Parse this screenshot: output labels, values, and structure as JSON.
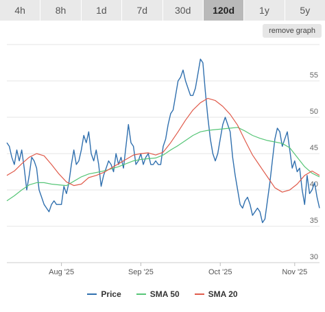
{
  "tabs": [
    {
      "label": "4h",
      "active": false
    },
    {
      "label": "8h",
      "active": false
    },
    {
      "label": "1d",
      "active": false
    },
    {
      "label": "7d",
      "active": false
    },
    {
      "label": "30d",
      "active": false
    },
    {
      "label": "120d",
      "active": true
    },
    {
      "label": "1y",
      "active": false
    },
    {
      "label": "5y",
      "active": false
    }
  ],
  "remove_label": "remove graph",
  "colors": {
    "price": "#2f6fae",
    "sma50": "#55c576",
    "sma20": "#e05a4a"
  },
  "chart_data": {
    "type": "line",
    "x_ticks": [
      "Aug '25",
      "Sep '25",
      "Oct '25",
      "Nov '25"
    ],
    "x_tick_days": [
      22,
      54,
      86,
      116
    ],
    "x_range": [
      0,
      126
    ],
    "ylim": [
      30,
      60
    ],
    "y_ticks": [
      30,
      35,
      40,
      45,
      50,
      55
    ],
    "grid": true,
    "legend": "bottom",
    "series": [
      {
        "name": "Price",
        "color_key": "price",
        "values": [
          [
            0,
            46.5
          ],
          [
            1,
            46
          ],
          [
            2,
            44.5
          ],
          [
            3,
            43.5
          ],
          [
            4,
            45.5
          ],
          [
            5,
            44
          ],
          [
            6,
            45.5
          ],
          [
            7,
            43
          ],
          [
            8,
            40
          ],
          [
            9,
            42
          ],
          [
            10,
            44.5
          ],
          [
            11,
            44
          ],
          [
            12,
            43
          ],
          [
            13,
            40
          ],
          [
            14,
            39
          ],
          [
            15,
            38
          ],
          [
            16,
            37.5
          ],
          [
            17,
            37
          ],
          [
            18,
            38
          ],
          [
            19,
            38.5
          ],
          [
            20,
            38
          ],
          [
            21,
            38
          ],
          [
            22,
            38
          ],
          [
            23,
            40.5
          ],
          [
            24,
            39.5
          ],
          [
            25,
            41
          ],
          [
            26,
            43.5
          ],
          [
            27,
            45.5
          ],
          [
            28,
            43.5
          ],
          [
            29,
            44
          ],
          [
            30,
            45.5
          ],
          [
            31,
            47.5
          ],
          [
            32,
            46.5
          ],
          [
            33,
            48
          ],
          [
            34,
            45
          ],
          [
            35,
            44
          ],
          [
            36,
            45.5
          ],
          [
            37,
            43.5
          ],
          [
            38,
            40.5
          ],
          [
            39,
            42
          ],
          [
            40,
            43
          ],
          [
            41,
            44
          ],
          [
            42,
            43.5
          ],
          [
            43,
            42.5
          ],
          [
            44,
            45
          ],
          [
            45,
            43.5
          ],
          [
            46,
            44.5
          ],
          [
            47,
            43
          ],
          [
            48,
            46
          ],
          [
            49,
            49
          ],
          [
            50,
            46.5
          ],
          [
            51,
            46
          ],
          [
            52,
            43.5
          ],
          [
            53,
            44
          ],
          [
            54,
            45
          ],
          [
            55,
            43.5
          ],
          [
            56,
            44.5
          ],
          [
            57,
            45
          ],
          [
            58,
            43.5
          ],
          [
            59,
            43.5
          ],
          [
            60,
            44
          ],
          [
            61,
            43.5
          ],
          [
            62,
            43.5
          ],
          [
            63,
            46
          ],
          [
            64,
            47
          ],
          [
            65,
            49
          ],
          [
            66,
            50.5
          ],
          [
            67,
            51
          ],
          [
            68,
            53
          ],
          [
            69,
            55
          ],
          [
            70,
            55.5
          ],
          [
            71,
            56.5
          ],
          [
            72,
            55
          ],
          [
            73,
            54
          ],
          [
            74,
            53
          ],
          [
            75,
            53
          ],
          [
            76,
            54
          ],
          [
            77,
            56
          ],
          [
            78,
            58
          ],
          [
            79,
            57.5
          ],
          [
            80,
            53.5
          ],
          [
            81,
            50
          ],
          [
            82,
            47
          ],
          [
            83,
            45
          ],
          [
            84,
            44
          ],
          [
            85,
            45
          ],
          [
            86,
            47
          ],
          [
            87,
            49
          ],
          [
            88,
            50
          ],
          [
            89,
            49
          ],
          [
            90,
            48
          ],
          [
            91,
            44.5
          ],
          [
            92,
            42
          ],
          [
            93,
            40
          ],
          [
            94,
            38
          ],
          [
            95,
            37.5
          ],
          [
            96,
            38.5
          ],
          [
            97,
            39
          ],
          [
            98,
            38
          ],
          [
            99,
            36.5
          ],
          [
            100,
            37
          ],
          [
            101,
            37.5
          ],
          [
            102,
            37
          ],
          [
            103,
            35.5
          ],
          [
            104,
            36
          ],
          [
            105,
            38.5
          ],
          [
            106,
            41
          ],
          [
            107,
            44
          ],
          [
            108,
            47
          ],
          [
            109,
            48.5
          ],
          [
            110,
            48
          ],
          [
            111,
            46
          ],
          [
            112,
            47
          ],
          [
            113,
            48
          ],
          [
            114,
            45.5
          ],
          [
            115,
            43
          ],
          [
            116,
            44
          ],
          [
            117,
            42.5
          ],
          [
            118,
            43
          ],
          [
            119,
            40
          ],
          [
            120,
            38
          ],
          [
            121,
            42
          ],
          [
            122,
            39.5
          ],
          [
            123,
            40
          ],
          [
            124,
            41
          ],
          [
            125,
            39
          ],
          [
            126,
            37.5
          ]
        ]
      },
      {
        "name": "SMA 50",
        "color_key": "sma50",
        "values": [
          [
            0,
            38.5
          ],
          [
            3,
            39.2
          ],
          [
            6,
            40
          ],
          [
            9,
            40.7
          ],
          [
            12,
            41
          ],
          [
            15,
            41
          ],
          [
            18,
            40.8
          ],
          [
            21,
            40.7
          ],
          [
            24,
            40.6
          ],
          [
            27,
            41.2
          ],
          [
            30,
            41.8
          ],
          [
            33,
            42.2
          ],
          [
            36,
            42.4
          ],
          [
            39,
            42.6
          ],
          [
            42,
            42.9
          ],
          [
            45,
            43.2
          ],
          [
            48,
            43.6
          ],
          [
            51,
            44
          ],
          [
            54,
            44.2
          ],
          [
            57,
            44.3
          ],
          [
            60,
            44.4
          ],
          [
            63,
            44.8
          ],
          [
            66,
            45.5
          ],
          [
            69,
            46.1
          ],
          [
            72,
            46.8
          ],
          [
            75,
            47.5
          ],
          [
            78,
            48
          ],
          [
            81,
            48.2
          ],
          [
            84,
            48.3
          ],
          [
            87,
            48.4
          ],
          [
            90,
            48.5
          ],
          [
            93,
            48.6
          ],
          [
            96,
            48.1
          ],
          [
            99,
            47.5
          ],
          [
            102,
            47.1
          ],
          [
            105,
            46.8
          ],
          [
            108,
            46.6
          ],
          [
            111,
            46.4
          ],
          [
            114,
            45.8
          ],
          [
            117,
            44.5
          ],
          [
            120,
            43.2
          ],
          [
            123,
            42.3
          ],
          [
            126,
            41.8
          ]
        ]
      },
      {
        "name": "SMA 20",
        "color_key": "sma20",
        "values": [
          [
            0,
            42
          ],
          [
            3,
            42.6
          ],
          [
            6,
            43.6
          ],
          [
            9,
            44.5
          ],
          [
            12,
            45
          ],
          [
            15,
            44.7
          ],
          [
            18,
            43.5
          ],
          [
            21,
            42.2
          ],
          [
            24,
            41.1
          ],
          [
            27,
            40.6
          ],
          [
            30,
            40.8
          ],
          [
            33,
            41.7
          ],
          [
            36,
            42
          ],
          [
            39,
            42.4
          ],
          [
            42,
            43
          ],
          [
            45,
            43.6
          ],
          [
            48,
            44.2
          ],
          [
            51,
            44.8
          ],
          [
            54,
            45
          ],
          [
            57,
            45.1
          ],
          [
            60,
            44.8
          ],
          [
            63,
            45.2
          ],
          [
            66,
            46.5
          ],
          [
            69,
            48
          ],
          [
            72,
            49.6
          ],
          [
            75,
            51
          ],
          [
            78,
            52
          ],
          [
            81,
            52.6
          ],
          [
            84,
            52.3
          ],
          [
            87,
            51.5
          ],
          [
            90,
            50.4
          ],
          [
            93,
            48.9
          ],
          [
            96,
            46.8
          ],
          [
            99,
            44.8
          ],
          [
            102,
            43.3
          ],
          [
            105,
            41.8
          ],
          [
            108,
            40.3
          ],
          [
            111,
            39.7
          ],
          [
            114,
            40
          ],
          [
            117,
            40.8
          ],
          [
            120,
            42
          ],
          [
            123,
            42.6
          ],
          [
            126,
            42
          ]
        ]
      }
    ]
  }
}
